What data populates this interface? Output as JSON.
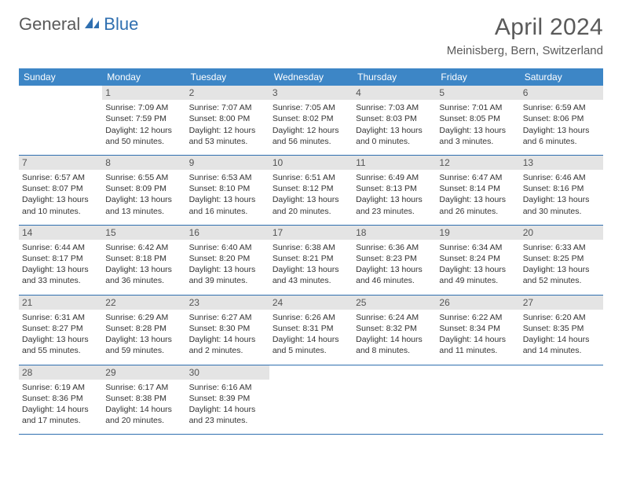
{
  "logo": {
    "word1": "General",
    "word2": "Blue"
  },
  "title": "April 2024",
  "location": "Meinisberg, Bern, Switzerland",
  "colors": {
    "header_bg": "#3d86c6",
    "header_text": "#ffffff",
    "divider": "#2f6fb0",
    "daynum_bg": "#e4e4e4",
    "body_text": "#333333",
    "title_text": "#5a5a5a"
  },
  "daynames": [
    "Sunday",
    "Monday",
    "Tuesday",
    "Wednesday",
    "Thursday",
    "Friday",
    "Saturday"
  ],
  "weeks": [
    [
      {
        "n": "",
        "sr": "",
        "ss": "",
        "dl": ""
      },
      {
        "n": "1",
        "sr": "Sunrise: 7:09 AM",
        "ss": "Sunset: 7:59 PM",
        "dl": "Daylight: 12 hours and 50 minutes."
      },
      {
        "n": "2",
        "sr": "Sunrise: 7:07 AM",
        "ss": "Sunset: 8:00 PM",
        "dl": "Daylight: 12 hours and 53 minutes."
      },
      {
        "n": "3",
        "sr": "Sunrise: 7:05 AM",
        "ss": "Sunset: 8:02 PM",
        "dl": "Daylight: 12 hours and 56 minutes."
      },
      {
        "n": "4",
        "sr": "Sunrise: 7:03 AM",
        "ss": "Sunset: 8:03 PM",
        "dl": "Daylight: 13 hours and 0 minutes."
      },
      {
        "n": "5",
        "sr": "Sunrise: 7:01 AM",
        "ss": "Sunset: 8:05 PM",
        "dl": "Daylight: 13 hours and 3 minutes."
      },
      {
        "n": "6",
        "sr": "Sunrise: 6:59 AM",
        "ss": "Sunset: 8:06 PM",
        "dl": "Daylight: 13 hours and 6 minutes."
      }
    ],
    [
      {
        "n": "7",
        "sr": "Sunrise: 6:57 AM",
        "ss": "Sunset: 8:07 PM",
        "dl": "Daylight: 13 hours and 10 minutes."
      },
      {
        "n": "8",
        "sr": "Sunrise: 6:55 AM",
        "ss": "Sunset: 8:09 PM",
        "dl": "Daylight: 13 hours and 13 minutes."
      },
      {
        "n": "9",
        "sr": "Sunrise: 6:53 AM",
        "ss": "Sunset: 8:10 PM",
        "dl": "Daylight: 13 hours and 16 minutes."
      },
      {
        "n": "10",
        "sr": "Sunrise: 6:51 AM",
        "ss": "Sunset: 8:12 PM",
        "dl": "Daylight: 13 hours and 20 minutes."
      },
      {
        "n": "11",
        "sr": "Sunrise: 6:49 AM",
        "ss": "Sunset: 8:13 PM",
        "dl": "Daylight: 13 hours and 23 minutes."
      },
      {
        "n": "12",
        "sr": "Sunrise: 6:47 AM",
        "ss": "Sunset: 8:14 PM",
        "dl": "Daylight: 13 hours and 26 minutes."
      },
      {
        "n": "13",
        "sr": "Sunrise: 6:46 AM",
        "ss": "Sunset: 8:16 PM",
        "dl": "Daylight: 13 hours and 30 minutes."
      }
    ],
    [
      {
        "n": "14",
        "sr": "Sunrise: 6:44 AM",
        "ss": "Sunset: 8:17 PM",
        "dl": "Daylight: 13 hours and 33 minutes."
      },
      {
        "n": "15",
        "sr": "Sunrise: 6:42 AM",
        "ss": "Sunset: 8:18 PM",
        "dl": "Daylight: 13 hours and 36 minutes."
      },
      {
        "n": "16",
        "sr": "Sunrise: 6:40 AM",
        "ss": "Sunset: 8:20 PM",
        "dl": "Daylight: 13 hours and 39 minutes."
      },
      {
        "n": "17",
        "sr": "Sunrise: 6:38 AM",
        "ss": "Sunset: 8:21 PM",
        "dl": "Daylight: 13 hours and 43 minutes."
      },
      {
        "n": "18",
        "sr": "Sunrise: 6:36 AM",
        "ss": "Sunset: 8:23 PM",
        "dl": "Daylight: 13 hours and 46 minutes."
      },
      {
        "n": "19",
        "sr": "Sunrise: 6:34 AM",
        "ss": "Sunset: 8:24 PM",
        "dl": "Daylight: 13 hours and 49 minutes."
      },
      {
        "n": "20",
        "sr": "Sunrise: 6:33 AM",
        "ss": "Sunset: 8:25 PM",
        "dl": "Daylight: 13 hours and 52 minutes."
      }
    ],
    [
      {
        "n": "21",
        "sr": "Sunrise: 6:31 AM",
        "ss": "Sunset: 8:27 PM",
        "dl": "Daylight: 13 hours and 55 minutes."
      },
      {
        "n": "22",
        "sr": "Sunrise: 6:29 AM",
        "ss": "Sunset: 8:28 PM",
        "dl": "Daylight: 13 hours and 59 minutes."
      },
      {
        "n": "23",
        "sr": "Sunrise: 6:27 AM",
        "ss": "Sunset: 8:30 PM",
        "dl": "Daylight: 14 hours and 2 minutes."
      },
      {
        "n": "24",
        "sr": "Sunrise: 6:26 AM",
        "ss": "Sunset: 8:31 PM",
        "dl": "Daylight: 14 hours and 5 minutes."
      },
      {
        "n": "25",
        "sr": "Sunrise: 6:24 AM",
        "ss": "Sunset: 8:32 PM",
        "dl": "Daylight: 14 hours and 8 minutes."
      },
      {
        "n": "26",
        "sr": "Sunrise: 6:22 AM",
        "ss": "Sunset: 8:34 PM",
        "dl": "Daylight: 14 hours and 11 minutes."
      },
      {
        "n": "27",
        "sr": "Sunrise: 6:20 AM",
        "ss": "Sunset: 8:35 PM",
        "dl": "Daylight: 14 hours and 14 minutes."
      }
    ],
    [
      {
        "n": "28",
        "sr": "Sunrise: 6:19 AM",
        "ss": "Sunset: 8:36 PM",
        "dl": "Daylight: 14 hours and 17 minutes."
      },
      {
        "n": "29",
        "sr": "Sunrise: 6:17 AM",
        "ss": "Sunset: 8:38 PM",
        "dl": "Daylight: 14 hours and 20 minutes."
      },
      {
        "n": "30",
        "sr": "Sunrise: 6:16 AM",
        "ss": "Sunset: 8:39 PM",
        "dl": "Daylight: 14 hours and 23 minutes."
      },
      {
        "n": "",
        "sr": "",
        "ss": "",
        "dl": ""
      },
      {
        "n": "",
        "sr": "",
        "ss": "",
        "dl": ""
      },
      {
        "n": "",
        "sr": "",
        "ss": "",
        "dl": ""
      },
      {
        "n": "",
        "sr": "",
        "ss": "",
        "dl": ""
      }
    ]
  ]
}
